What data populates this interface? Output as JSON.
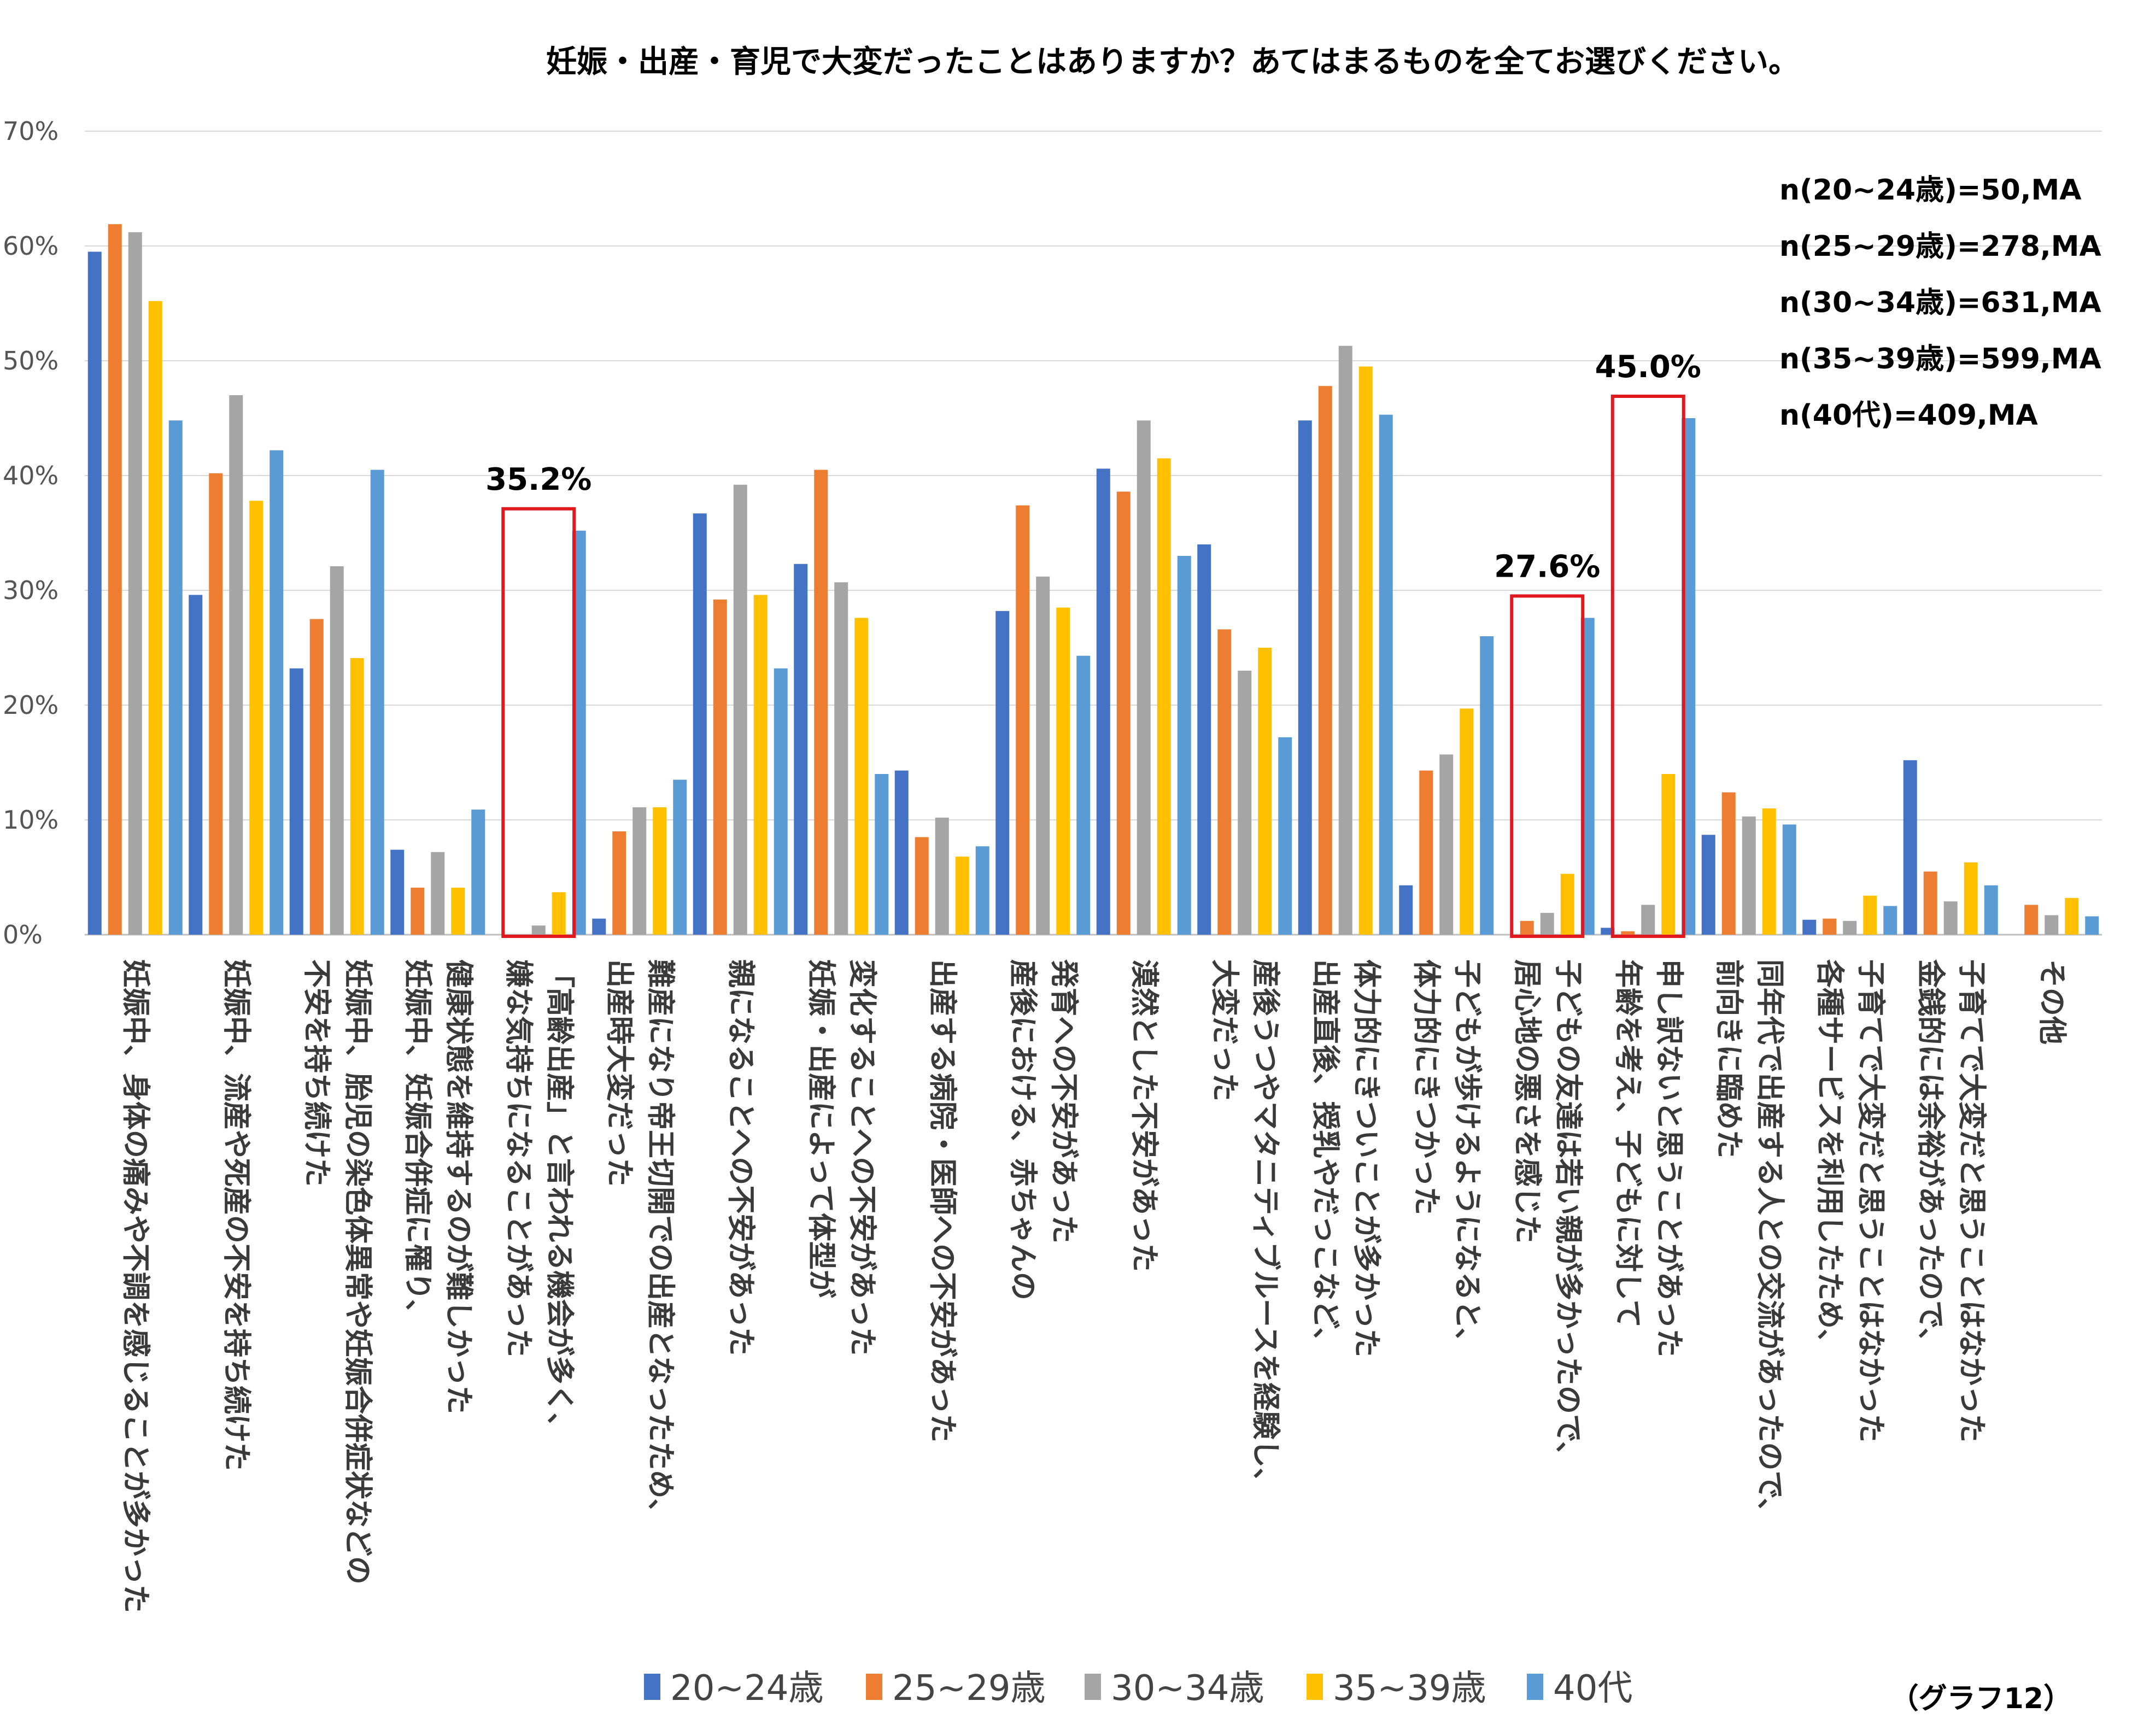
{
  "chart_data": {
    "type": "bar",
    "title": "妊娠・出産・育児で大変だったことはありますか？あてはまるものを全てお選びください。",
    "ylim": [
      0,
      70
    ],
    "y_ticks": [
      "0%",
      "10%",
      "20%",
      "30%",
      "40%",
      "50%",
      "60%",
      "70%"
    ],
    "y_tick_values": [
      0,
      10,
      20,
      30,
      40,
      50,
      60,
      70
    ],
    "grid": true,
    "categories": [
      {
        "label": "妊娠中、身体の痛みや不調を感じることが多かった",
        "lines": [
          "妊娠中、身体の痛みや不調を感じることが多かった"
        ]
      },
      {
        "label": "妊娠中、流産や死産の不安を持ち続けた",
        "lines": [
          "妊娠中、流産や死産の不安を持ち続けた"
        ]
      },
      {
        "label": "妊娠中、胎児の染色体異常や妊娠合併症状などの不安を持ち続けた",
        "lines": [
          "妊娠中、胎児の染色体異常や妊娠合併症状などの",
          "不安を持ち続けた"
        ]
      },
      {
        "label": "健康状態を維持するのが難しかった 妊娠中、妊娠合併症に罹り、",
        "lines": [
          "健康状態を維持するのが難しかった",
          "妊娠中、妊娠合併症に罹り、"
        ]
      },
      {
        "label": "「高齢出産」と言われる機会が多く、嫌な気持ちになることがあった",
        "lines": [
          "「高齢出産」と言われる機会が多く、",
          "嫌な気持ちになることがあった"
        ]
      },
      {
        "label": "難産になり帝王切開での出産となったため、出産時大変だった",
        "lines": [
          "難産になり帝王切開での出産となったため、",
          "出産時大変だった"
        ]
      },
      {
        "label": "親になることへの不安があった",
        "lines": [
          "親になることへの不安があった"
        ]
      },
      {
        "label": "妊娠・出産によって体型が変化することへの不安があった",
        "lines": [
          "変化することへの不安があった",
          "妊娠・出産によって体型が"
        ]
      },
      {
        "label": "出産する病院・医師への不安があった",
        "lines": [
          "出産する病院・医師への不安があった"
        ]
      },
      {
        "label": "産後における、赤ちゃんの発育への不安があった",
        "lines": [
          "発育への不安があった",
          "産後における、赤ちゃんの"
        ]
      },
      {
        "label": "漠然とした不安があった",
        "lines": [
          "漠然とした不安があった"
        ]
      },
      {
        "label": "産後うつやマタニティブルースを経験し、大変だった",
        "lines": [
          "産後うつやマタニティブルースを経験し、",
          "大変だった"
        ]
      },
      {
        "label": "出産直後、授乳やだっこなど、体力的にきついことが多かった",
        "lines": [
          "体力的にきついことが多かった",
          "出産直後、授乳やだっこなど、"
        ]
      },
      {
        "label": "子どもが歩けるようになると、体力的にきつかった",
        "lines": [
          "子どもが歩けるようになると、",
          "体力的にきつかった"
        ]
      },
      {
        "label": "子どもの友達は若い親が多かったので、居心地の悪さを感じた",
        "lines": [
          "子どもの友達は若い親が多かったので、",
          "居心地の悪さを感じた"
        ]
      },
      {
        "label": "年齢を考え、子どもに対して申し訳ないと思うことがあった",
        "lines": [
          "申し訳ないと思うことがあった",
          "年齢を考え、子どもに対して"
        ]
      },
      {
        "label": "同年代で出産する人との交流があったので、前向きに臨めた",
        "lines": [
          "同年代で出産する人との交流があったので、",
          "前向きに臨めた"
        ]
      },
      {
        "label": "子育てで大変だと思うことはなかった 各種サービスを利用したため、",
        "lines": [
          "子育てで大変だと思うことはなかった",
          "各種サービスを利用したため、"
        ]
      },
      {
        "label": "金銭的には余裕があったので、子育てで大変だと思うことはなかった",
        "lines": [
          "子育てで大変だと思うことはなかった",
          "金銭的には余裕があったので、"
        ]
      },
      {
        "label": "その他",
        "lines": [
          "その他"
        ]
      }
    ],
    "series": [
      {
        "name": "20~24歳",
        "color": "#4472C4",
        "values": [
          59.5,
          29.6,
          23.2,
          7.4,
          0.0,
          1.4,
          36.7,
          32.3,
          14.3,
          28.2,
          40.6,
          34.0,
          44.8,
          4.3,
          0.0,
          0.6,
          8.7,
          1.3,
          15.2,
          0.0
        ]
      },
      {
        "name": "25~29歳",
        "color": "#ED7D31",
        "values": [
          61.9,
          40.2,
          27.5,
          4.1,
          0.0,
          9.0,
          29.2,
          40.5,
          8.5,
          37.4,
          38.6,
          26.6,
          47.8,
          14.3,
          1.2,
          0.3,
          12.4,
          1.4,
          5.5,
          2.6
        ]
      },
      {
        "name": "30~34歳",
        "color": "#A5A5A5",
        "values": [
          61.2,
          47.0,
          32.1,
          7.2,
          0.8,
          11.1,
          39.2,
          30.7,
          10.2,
          31.2,
          44.8,
          23.0,
          51.3,
          15.7,
          1.9,
          2.6,
          10.3,
          1.2,
          2.9,
          1.7
        ]
      },
      {
        "name": "35~39歳",
        "color": "#FFC000",
        "values": [
          55.2,
          37.8,
          24.1,
          4.1,
          3.7,
          11.1,
          29.6,
          27.6,
          6.8,
          28.5,
          41.5,
          25.0,
          49.5,
          19.7,
          5.3,
          14.0,
          11.0,
          3.4,
          6.3,
          3.2
        ]
      },
      {
        "name": "40代",
        "color": "#5B9BD5",
        "values": [
          44.8,
          42.2,
          40.5,
          10.9,
          35.2,
          13.5,
          23.2,
          14.0,
          7.7,
          24.3,
          33.0,
          17.2,
          45.3,
          26.0,
          27.6,
          45.0,
          9.6,
          2.5,
          4.3,
          1.6
        ]
      }
    ],
    "highlights": [
      {
        "category_index": 4,
        "label": "35.2%"
      },
      {
        "category_index": 14,
        "label": "27.6%"
      },
      {
        "category_index": 15,
        "label": "45.0%"
      }
    ],
    "n_info": [
      "n(20~24歳)=50,MA",
      "n(25~29歳)=278,MA",
      "n(30~34歳)=631,MA",
      "n(35~39歳)=599,MA",
      "n(40代)=409,MA"
    ],
    "legend_position": "bottom-center",
    "note": "（グラフ12）"
  },
  "colors": {
    "highlight_box": "#E0191E",
    "grid": "#D9D9D9",
    "axis": "#BFBFBF"
  }
}
